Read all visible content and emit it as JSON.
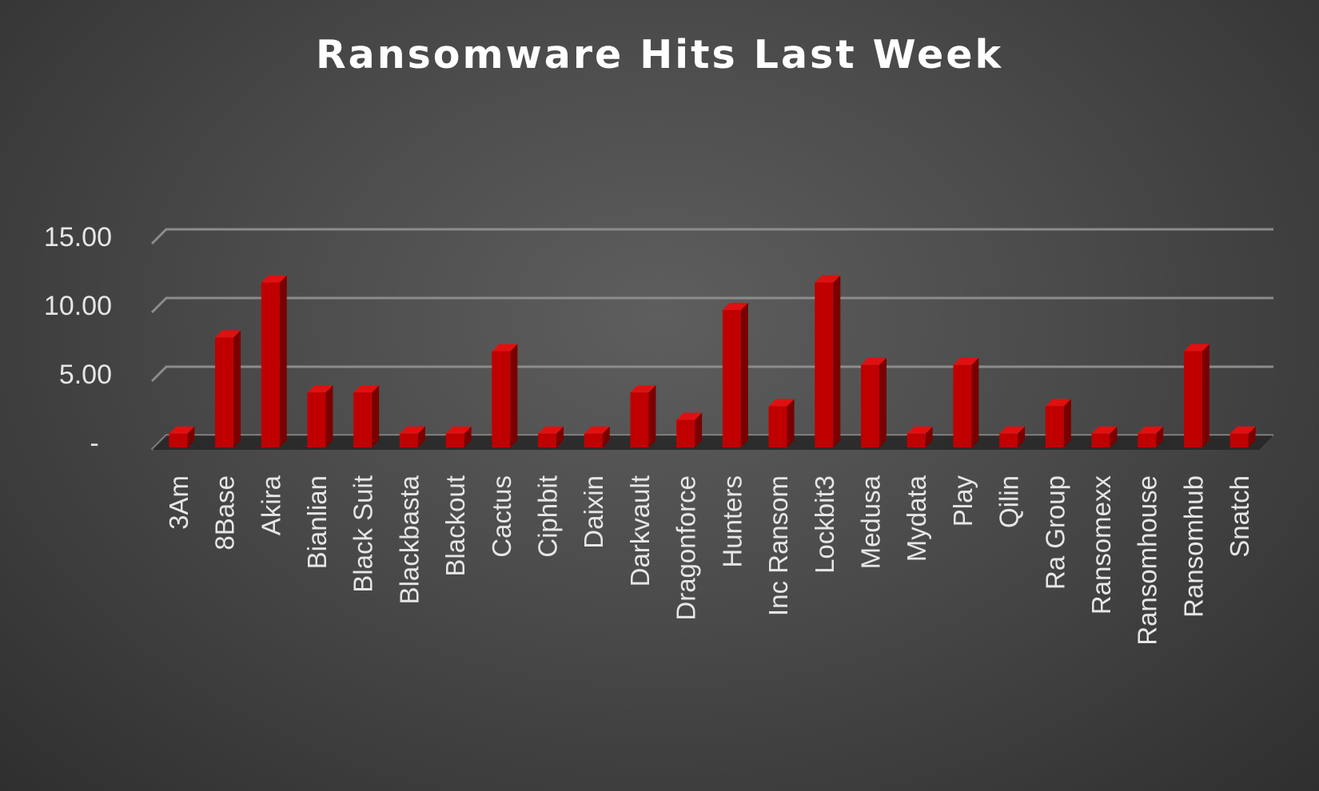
{
  "chart_data": {
    "type": "bar",
    "title": "Ransomware Hits Last Week",
    "xlabel": "",
    "ylabel": "",
    "categories": [
      "3Am",
      "8Base",
      "Akira",
      "Bianlian",
      "Black Suit",
      "Blackbasta",
      "Blackout",
      "Cactus",
      "Ciphbit",
      "Daixin",
      "Darkvault",
      "Dragonforce",
      "Hunters",
      "Inc Ransom",
      "Lockbit3",
      "Medusa",
      "Mydata",
      "Play",
      "Qilin",
      "Ra Group",
      "Ransomexx",
      "Ransomhouse",
      "Ransomhub",
      "Snatch"
    ],
    "values": [
      1,
      8,
      12,
      4,
      4,
      1,
      1,
      7,
      1,
      1,
      4,
      2,
      10,
      3,
      12,
      6,
      1,
      6,
      1,
      3,
      1,
      1,
      7,
      1
    ],
    "y_ticks": [
      "-",
      "5.00",
      "10.00",
      "15.00"
    ],
    "y_tick_values": [
      0,
      5,
      10,
      15
    ],
    "ylim": [
      0,
      15
    ],
    "grid": true,
    "legend": "none",
    "style": "3d-column",
    "bar_color": "#c00000",
    "bar_side_color": "#7a0000",
    "bar_top_color": "#e01010",
    "gridline_color": "#8c8c8c",
    "floor_color": "#262626"
  }
}
